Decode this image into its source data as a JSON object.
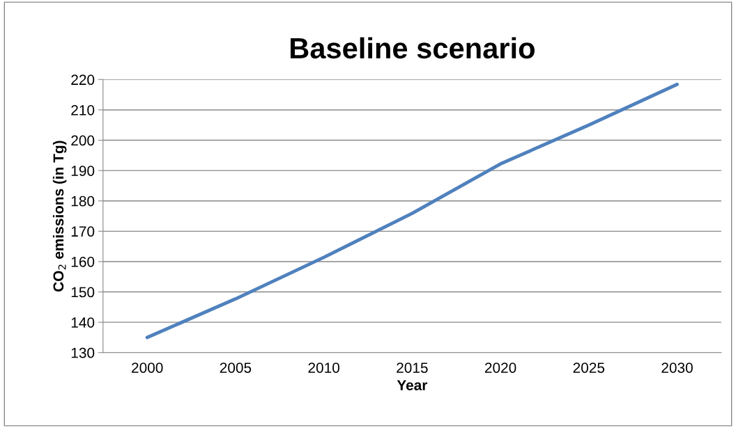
{
  "chart_data": {
    "type": "line",
    "title": "Baseline scenario",
    "xlabel": "Year",
    "ylabel": "CO$_{2}$ emissions (in Tg)",
    "categories": [
      "2000",
      "2005",
      "2010",
      "2015",
      "2020",
      "2025",
      "2030"
    ],
    "series": [
      {
        "color": "#4f81bd",
        "values": [
          135.0,
          147.7,
          161.4,
          175.9,
          192.2,
          205.0,
          218.4
        ]
      }
    ],
    "ylim": [
      130,
      220
    ],
    "yticks": [
      130,
      140,
      150,
      160,
      170,
      180,
      190,
      200,
      210,
      220
    ],
    "grid": "y",
    "marker": "none",
    "line_style": "solid"
  }
}
